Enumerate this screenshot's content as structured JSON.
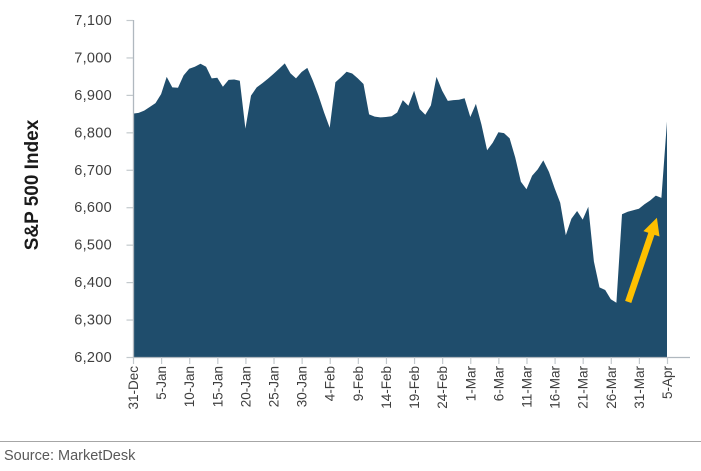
{
  "chart_data": {
    "type": "area",
    "title": "",
    "ylabel": "S&P 500 Index",
    "xlabel": "",
    "ylim": [
      6200,
      7100
    ],
    "ytick_step": 100,
    "grid": false,
    "legend": "none",
    "x_tick_labels": [
      "31-Dec",
      "5-Jan",
      "10-Jan",
      "15-Jan",
      "20-Jan",
      "25-Jan",
      "30-Jan",
      "4-Feb",
      "9-Feb",
      "14-Feb",
      "19-Feb",
      "24-Feb",
      "1-Mar",
      "6-Mar",
      "11-Mar",
      "16-Mar",
      "21-Mar",
      "26-Mar",
      "31-Mar",
      "5-Apr"
    ],
    "x_tick_interval_days": 5,
    "series": [
      {
        "name": "S&P 500 Index",
        "color": "#1F4D6C",
        "values": [
          6850,
          6852,
          6858,
          6868,
          6878,
          6902,
          6948,
          6920,
          6919,
          6952,
          6970,
          6975,
          6983,
          6975,
          6944,
          6946,
          6922,
          6940,
          6941,
          6938,
          6810,
          6898,
          6920,
          6931,
          6943,
          6956,
          6970,
          6984,
          6958,
          6944,
          6961,
          6972,
          6938,
          6898,
          6853,
          6812,
          6934,
          6947,
          6962,
          6957,
          6944,
          6929,
          6848,
          6842,
          6840,
          6841,
          6843,
          6853,
          6886,
          6871,
          6911,
          6862,
          6847,
          6872,
          6948,
          6911,
          6884,
          6886,
          6887,
          6891,
          6841,
          6876,
          6820,
          6752,
          6772,
          6800,
          6798,
          6784,
          6733,
          6668,
          6648,
          6684,
          6701,
          6725,
          6694,
          6651,
          6612,
          6525,
          6569,
          6590,
          6567,
          6601,
          6455,
          6386,
          6379,
          6354,
          6345,
          6581,
          6588,
          6592,
          6596,
          6608,
          6618,
          6631,
          6625,
          6829
        ]
      }
    ],
    "annotation_arrow": {
      "color": "#FFC000",
      "start": {
        "day": 88.1,
        "value": 6347
      },
      "end": {
        "day": 93.2,
        "value": 6572
      }
    }
  },
  "source": {
    "label": "Source: MarketDesk"
  },
  "colors": {
    "area_fill": "#1F4D6C",
    "arrow": "#FFC000",
    "axis_line": "#b0b8bf",
    "tick_line": "#c3c9cd",
    "tick_label": "#3f3f3f",
    "axis_title": "#1a1a1a",
    "source_text": "#595959",
    "divider": "#a6a6a6"
  }
}
